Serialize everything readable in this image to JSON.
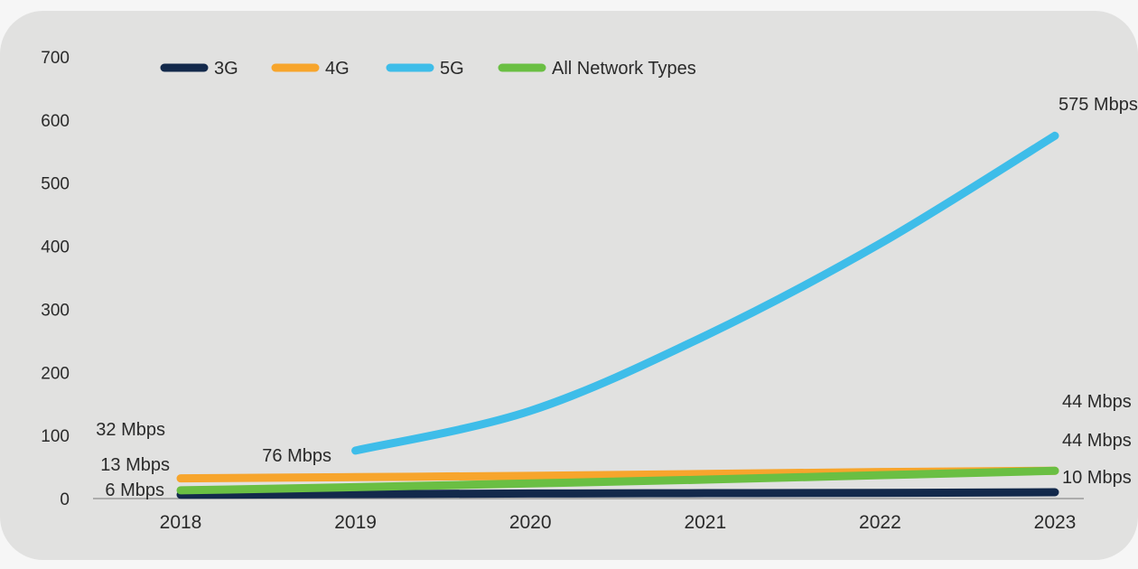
{
  "chart_data": {
    "type": "line",
    "title": "",
    "xlabel": "",
    "ylabel": "",
    "ylim": [
      0,
      700
    ],
    "yticks": [
      "0",
      "100",
      "200",
      "300",
      "400",
      "500",
      "600",
      "700"
    ],
    "x": [
      "2018",
      "2019",
      "2020",
      "2021",
      "2022",
      "2023"
    ],
    "grid": false,
    "legend_position": "top-left",
    "series": [
      {
        "name": "3G",
        "color": "#13294b",
        "values": [
          6,
          7,
          8,
          8.5,
          9,
          10
        ],
        "start_label": "6 Mbps",
        "end_label": "10 Mbps"
      },
      {
        "name": "4G",
        "color": "#f7a52c",
        "values": [
          32,
          34,
          36,
          39,
          42,
          44
        ],
        "start_label": "32 Mbps",
        "end_label": "44 Mbps"
      },
      {
        "name": "5G",
        "color": "#3ebde9",
        "values": [
          null,
          76,
          139,
          258,
          404,
          575
        ],
        "start_label": "76 Mbps",
        "end_label": "575 Mbps"
      },
      {
        "name": "All Network Types",
        "color": "#6abf43",
        "values": [
          13,
          18,
          24,
          30,
          37,
          44
        ],
        "start_label": "13 Mbps",
        "end_label": "44 Mbps"
      }
    ]
  }
}
